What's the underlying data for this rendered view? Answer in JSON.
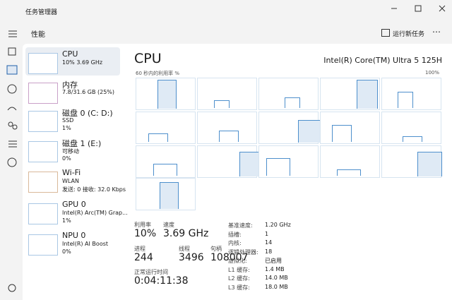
{
  "window": {
    "title": "任务管理器"
  },
  "header": {
    "title": "性能",
    "action": "运行新任务"
  },
  "sidebar": [
    {
      "name": "CPU",
      "lines": [
        "10% 3.69 GHz"
      ]
    },
    {
      "name": "内存",
      "lines": [
        "7.8/31.6 GB (25%)"
      ]
    },
    {
      "name": "磁盘 0 (C: D:)",
      "lines": [
        "SSD",
        "1%"
      ]
    },
    {
      "name": "磁盘 1 (E:)",
      "lines": [
        "可移动",
        "0%"
      ]
    },
    {
      "name": "Wi-Fi",
      "lines": [
        "WLAN",
        "发送: 0 接收: 32.0 Kbps"
      ]
    },
    {
      "name": "GPU 0",
      "lines": [
        "Intel(R) Arc(TM) Grap...",
        "1%"
      ]
    },
    {
      "name": "NPU 0",
      "lines": [
        "Intel(R) AI Boost",
        "0%"
      ]
    }
  ],
  "main": {
    "title": "CPU",
    "processor": "Intel(R) Core(TM) Ultra 5 125H",
    "graph_label": "60 秒内的利用率 %",
    "graph_max": "100%",
    "stats": [
      {
        "label": "利用率",
        "value": "10%"
      },
      {
        "label": "速度",
        "value": "3.69 GHz"
      },
      {
        "label": "进程",
        "value": "244"
      },
      {
        "label": "线程",
        "value": "3496"
      },
      {
        "label": "句柄",
        "value": "108007"
      }
    ],
    "uptime": {
      "label": "正常运行时间",
      "value": "0:04:11:38"
    },
    "details": [
      {
        "label": "基准速度:",
        "value": "1.20 GHz"
      },
      {
        "label": "插槽:",
        "value": "1"
      },
      {
        "label": "内核:",
        "value": "14"
      },
      {
        "label": "逻辑处理器:",
        "value": "18"
      },
      {
        "label": "虚拟化:",
        "value": "已启用"
      },
      {
        "label": "L1 缓存:",
        "value": "1.4 MB"
      },
      {
        "label": "L2 缓存:",
        "value": "14.0 MB"
      },
      {
        "label": "L3 缓存:",
        "value": "18.0 MB"
      }
    ]
  }
}
